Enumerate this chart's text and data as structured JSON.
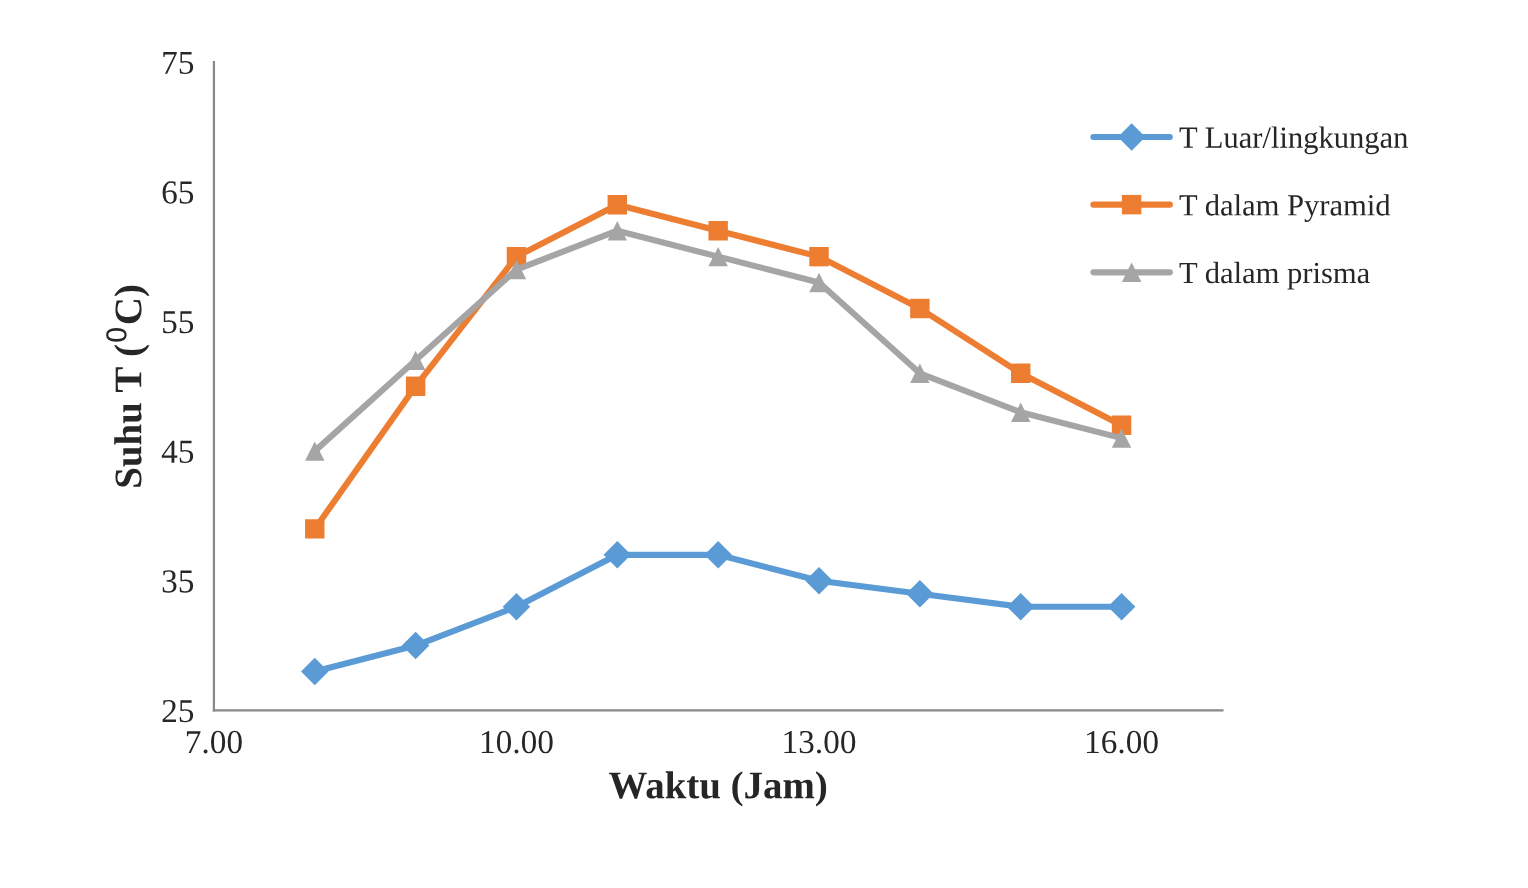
{
  "chart_data": {
    "type": "line",
    "xlabel": "Waktu (Jam)",
    "ylabel": "Suhu T ($^{0}$C)",
    "x": [
      8,
      9,
      10,
      11,
      12,
      13,
      14,
      15,
      16
    ],
    "xlim": [
      7,
      17
    ],
    "xticks": [
      {
        "value": 7,
        "label": "7.00"
      },
      {
        "value": 10,
        "label": "10.00"
      },
      {
        "value": 13,
        "label": "13.00"
      },
      {
        "value": 16,
        "label": "16.00"
      }
    ],
    "ylim": [
      25,
      75
    ],
    "yticks": [
      25,
      35,
      45,
      55,
      65,
      75
    ],
    "grid": false,
    "legend": "top right",
    "line_style": "solid",
    "series": [
      {
        "name": "T Luar/lingkungan",
        "color": "#5b9bd5",
        "marker": "diamond",
        "values": [
          28,
          30,
          33,
          37,
          37,
          35,
          34,
          33,
          33
        ]
      },
      {
        "name": "T dalam Pyramid",
        "color": "#ed7d31",
        "marker": "square",
        "values": [
          39,
          50,
          60,
          64,
          62,
          60,
          56,
          51,
          47
        ]
      },
      {
        "name": "T dalam prisma",
        "color": "#a5a5a5",
        "marker": "triangle",
        "values": [
          45,
          52,
          59,
          62,
          60,
          58,
          51,
          48,
          46
        ]
      }
    ]
  }
}
